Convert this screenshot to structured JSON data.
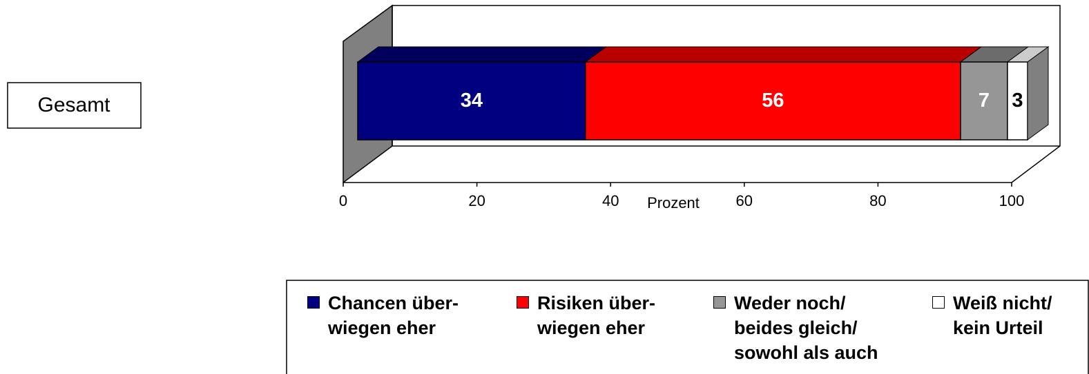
{
  "chart_data": {
    "type": "stacked-bar-3d",
    "orientation": "horizontal",
    "categories": [
      "Gesamt"
    ],
    "series": [
      {
        "name": "Chancen über-\nwiegen eher",
        "color": "#000080",
        "values": [
          34
        ]
      },
      {
        "name": "Risiken über-\nwiegen eher",
        "color": "#ff0000",
        "values": [
          56
        ]
      },
      {
        "name": "Weder noch/\nbeides gleich/\nsowohl als auch",
        "color": "#969696",
        "values": [
          7
        ]
      },
      {
        "name": "Weiß nicht/\nkein Urteil",
        "color": "#ffffff",
        "values": [
          3
        ]
      }
    ],
    "xlabel": "Prozent",
    "xlim": [
      0,
      100
    ],
    "xticks": [
      0,
      20,
      40,
      60,
      80,
      100
    ],
    "legend": "bottom"
  }
}
